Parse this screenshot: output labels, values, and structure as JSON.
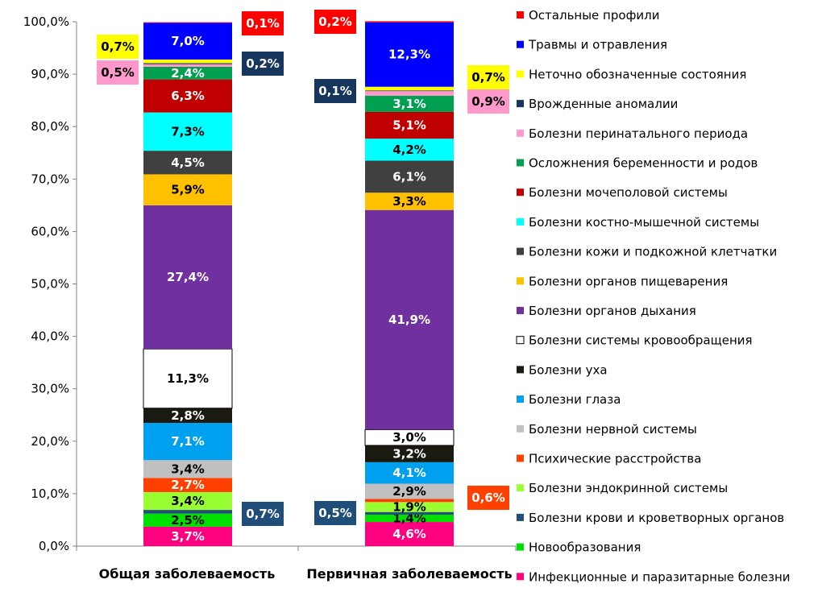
{
  "chart_data": {
    "type": "bar",
    "stacked": true,
    "percent": true,
    "categories": [
      "Общая заболеваемость",
      "Первичная заболеваемость"
    ],
    "y_ticks": [
      "0,0%",
      "10,0%",
      "20,0%",
      "30,0%",
      "40,0%",
      "50,0%",
      "60,0%",
      "70,0%",
      "80,0%",
      "90,0%",
      "100,0%"
    ],
    "ylim": [
      0,
      100
    ],
    "grid": false,
    "legend_position": "right",
    "series": [
      {
        "name": "Инфекционные и паразитарные болезни",
        "color": "#ff0080",
        "values": [
          3.7,
          4.6
        ],
        "labels": [
          "3,7%",
          "4,6%"
        ]
      },
      {
        "name": "Новообразования",
        "color": "#00e000",
        "values": [
          2.5,
          1.4
        ],
        "labels": [
          "2,5%",
          "1,4%"
        ]
      },
      {
        "name": "Болезни крови и кроветворных органов",
        "color": "#1f4e79",
        "values": [
          0.7,
          0.5
        ],
        "labels": [
          "0,7%",
          "0,5%"
        ]
      },
      {
        "name": "Болезни эндокринной системы",
        "color": "#99ff33",
        "values": [
          3.4,
          1.9
        ],
        "labels": [
          "3,4%",
          "1,9%"
        ]
      },
      {
        "name": "Психические расстройства",
        "color": "#ff4000",
        "values": [
          2.7,
          0.6
        ],
        "labels": [
          "2,7%",
          "0,6%"
        ]
      },
      {
        "name": "Болезни нервной системы",
        "color": "#c0c0c0",
        "values": [
          3.4,
          2.9
        ],
        "labels": [
          "3,4%",
          "2,9%"
        ]
      },
      {
        "name": "Болезни глаза",
        "color": "#00a0f0",
        "values": [
          7.1,
          4.1
        ],
        "labels": [
          "7,1%",
          "4,1%"
        ]
      },
      {
        "name": "Болезни уха",
        "color": "#1a1a10",
        "values": [
          2.8,
          3.2
        ],
        "labels": [
          "2,8%",
          "3,2%"
        ]
      },
      {
        "name": "Болезни системы кровообращения",
        "color": "#ffffff",
        "values": [
          11.3,
          3.0
        ],
        "labels": [
          "11,3%",
          "3,0%"
        ]
      },
      {
        "name": "Болезни органов дыхания",
        "color": "#7030a0",
        "values": [
          27.4,
          41.9
        ],
        "labels": [
          "27,4%",
          "41,9%"
        ]
      },
      {
        "name": "Болезни органов пищеварения",
        "color": "#ffc000",
        "values": [
          5.9,
          3.3
        ],
        "labels": [
          "5,9%",
          "3,3%"
        ]
      },
      {
        "name": "Болезни кожи и подкожной клетчатки",
        "color": "#404040",
        "values": [
          4.5,
          6.1
        ],
        "labels": [
          "4,5%",
          "6,1%"
        ]
      },
      {
        "name": "Болезни костно-мышечной системы",
        "color": "#00ffff",
        "values": [
          7.3,
          4.2
        ],
        "labels": [
          "7,3%",
          "4,2%"
        ]
      },
      {
        "name": "Болезни мочеполовой системы",
        "color": "#c00000",
        "values": [
          6.3,
          5.1
        ],
        "labels": [
          "6,3%",
          "5,1%"
        ]
      },
      {
        "name": "Осложнения беременности и родов",
        "color": "#00a050",
        "values": [
          2.4,
          3.1
        ],
        "labels": [
          "2,4%",
          "3,1%"
        ]
      },
      {
        "name": "Болезни перинатального периода",
        "color": "#ff99cc",
        "values": [
          0.5,
          0.9
        ],
        "labels": [
          "0,5%",
          "0,9%"
        ]
      },
      {
        "name": "Врожденные аномалии",
        "color": "#17365d",
        "values": [
          0.2,
          0.1
        ],
        "labels": [
          "0,2%",
          "0,1%"
        ]
      },
      {
        "name": "Неточно обозначенные состояния",
        "color": "#ffff00",
        "values": [
          0.7,
          0.7
        ],
        "labels": [
          "0,7%",
          "0,7%"
        ]
      },
      {
        "name": "Травмы и отравления",
        "color": "#0000ff",
        "values": [
          7.0,
          12.3
        ],
        "labels": [
          "7,0%",
          "12,3%"
        ]
      },
      {
        "name": "Остальные профили",
        "color": "#ff0000",
        "values": [
          0.1,
          0.2
        ],
        "labels": [
          "0,1%",
          "0,2%"
        ]
      }
    ],
    "legend_order": [
      19,
      18,
      17,
      16,
      15,
      14,
      13,
      12,
      11,
      10,
      9,
      8,
      7,
      6,
      5,
      4,
      3,
      2,
      1,
      0
    ]
  }
}
